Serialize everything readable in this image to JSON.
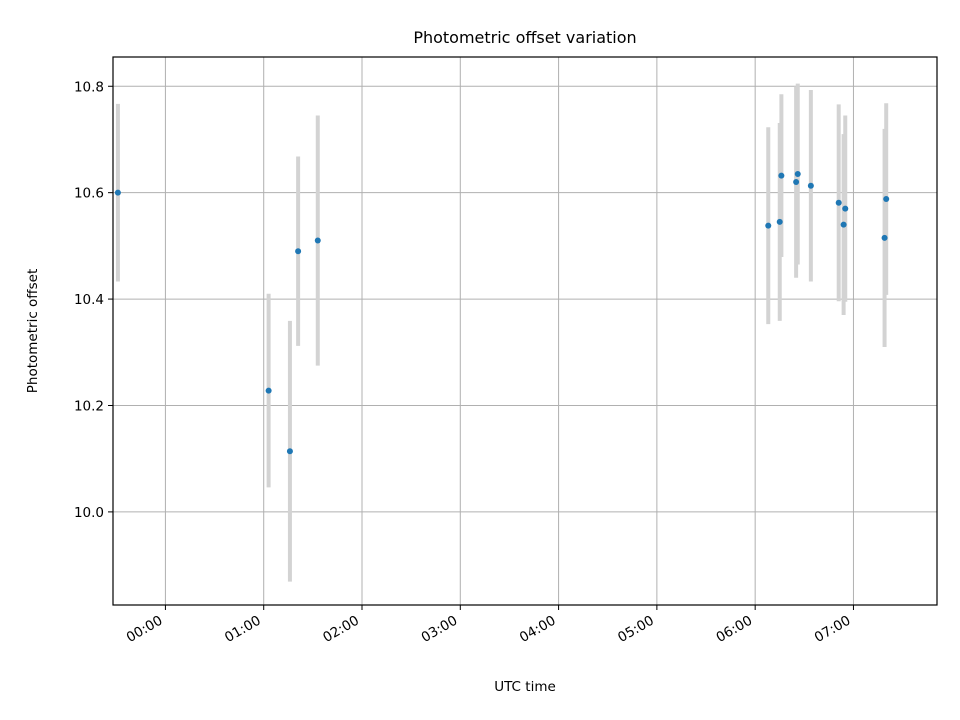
{
  "chart_data": {
    "type": "scatter",
    "title": "Photometric offset variation",
    "xlabel": "UTC time",
    "ylabel": "Photometric offset",
    "x_ticks": [
      "00:00",
      "01:00",
      "02:00",
      "03:00",
      "04:00",
      "05:00",
      "06:00",
      "07:00"
    ],
    "y_ticks": [
      10.0,
      10.2,
      10.4,
      10.6,
      10.8
    ],
    "xlim": [
      "-00:32",
      "07:51"
    ],
    "ylim": [
      9.825,
      10.855
    ],
    "grid": true,
    "legend": "none",
    "series": [
      {
        "marker_color": "#1f77b4",
        "errorbar_color": "#d3d3d3",
        "points": [
          {
            "x": "-00:29",
            "y": 10.6,
            "err": 0.167
          },
          {
            "x": "01:03",
            "y": 10.228,
            "err": 0.182
          },
          {
            "x": "01:16",
            "y": 10.114,
            "err": 0.245
          },
          {
            "x": "01:21",
            "y": 10.49,
            "err": 0.178
          },
          {
            "x": "01:33",
            "y": 10.51,
            "err": 0.235
          },
          {
            "x": "06:08",
            "y": 10.538,
            "err": 0.185
          },
          {
            "x": "06:15",
            "y": 10.545,
            "err": 0.186
          },
          {
            "x": "06:16",
            "y": 10.632,
            "err": 0.153
          },
          {
            "x": "06:25",
            "y": 10.62,
            "err": 0.18
          },
          {
            "x": "06:26",
            "y": 10.635,
            "err": 0.17
          },
          {
            "x": "06:34",
            "y": 10.613,
            "err": 0.18
          },
          {
            "x": "06:51",
            "y": 10.581,
            "err": 0.185
          },
          {
            "x": "06:54",
            "y": 10.54,
            "err": 0.17
          },
          {
            "x": "06:55",
            "y": 10.57,
            "err": 0.175
          },
          {
            "x": "07:19",
            "y": 10.515,
            "err": 0.205
          },
          {
            "x": "07:20",
            "y": 10.588,
            "err": 0.18
          }
        ]
      }
    ]
  }
}
